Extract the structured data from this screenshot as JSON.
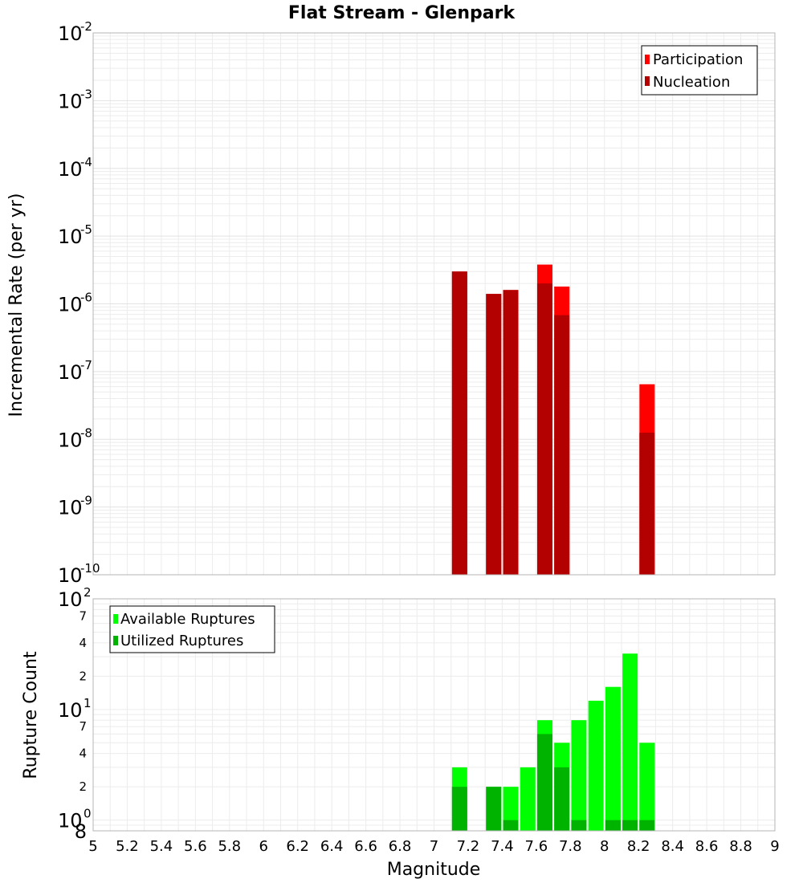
{
  "chart_data": [
    {
      "type": "bar",
      "title": "Flat Stream - Glenpark",
      "xlabel": "Magnitude",
      "ylabel": "Incremental Rate (per yr)",
      "yscale": "log",
      "xlim": [
        5,
        9
      ],
      "ylim": [
        1e-10,
        0.01
      ],
      "grid": true,
      "legend_position": "top-right",
      "x_ticks": [
        "5",
        "5.2",
        "5.4",
        "5.6",
        "5.8",
        "6",
        "6.2",
        "6.4",
        "6.6",
        "6.8",
        "7",
        "7.2",
        "7.4",
        "7.6",
        "7.8",
        "8",
        "8.2",
        "8.4",
        "8.6",
        "8.8",
        "9"
      ],
      "y_ticks": [
        {
          "base": "10",
          "exp": "-2",
          "value": 0.01
        },
        {
          "base": "10",
          "exp": "-3",
          "value": 0.001
        },
        {
          "base": "10",
          "exp": "-4",
          "value": 0.0001
        },
        {
          "base": "10",
          "exp": "-5",
          "value": 1e-05
        },
        {
          "base": "10",
          "exp": "-6",
          "value": 1e-06
        },
        {
          "base": "10",
          "exp": "-7",
          "value": 1e-07
        },
        {
          "base": "10",
          "exp": "-8",
          "value": 1e-08
        },
        {
          "base": "10",
          "exp": "-9",
          "value": 1e-09
        },
        {
          "base": "10",
          "exp": "-10",
          "value": 1e-10
        }
      ],
      "series": [
        {
          "name": "Participation",
          "color": "#ff0000",
          "x": [
            7.15,
            7.35,
            7.45,
            7.65,
            7.75,
            8.25
          ],
          "values": [
            3e-06,
            1.4e-06,
            1.6e-06,
            3.8e-06,
            1.8e-06,
            6.5e-08
          ]
        },
        {
          "name": "Nucleation",
          "color": "#b30000",
          "x": [
            7.15,
            7.35,
            7.45,
            7.65,
            7.75,
            8.25
          ],
          "values": [
            3e-06,
            1.4e-06,
            1.6e-06,
            2e-06,
            6.8e-07,
            1.25e-08
          ]
        }
      ]
    },
    {
      "type": "bar",
      "title": "",
      "xlabel": "Magnitude",
      "ylabel": "Rupture Count",
      "yscale": "log",
      "xlim": [
        5,
        9
      ],
      "ylim": [
        0.8,
        100
      ],
      "grid": true,
      "legend_position": "top-left",
      "y_ticks": [
        {
          "base": "10",
          "exp": "2",
          "value": 100
        },
        {
          "base": "10",
          "exp": "1",
          "value": 10
        },
        {
          "base": "10",
          "exp": "0",
          "value": 1
        }
      ],
      "y_minor_labels": [
        {
          "label": "7",
          "value": 70
        },
        {
          "label": "4",
          "value": 40
        },
        {
          "label": "2",
          "value": 20
        },
        {
          "label": "7",
          "value": 7
        },
        {
          "label": "4",
          "value": 4
        },
        {
          "label": "2",
          "value": 2
        },
        {
          "label": "8",
          "value": 0.8
        }
      ],
      "series": [
        {
          "name": "Available Ruptures",
          "color": "#00ff00",
          "x": [
            7.15,
            7.35,
            7.45,
            7.55,
            7.65,
            7.75,
            7.85,
            7.95,
            8.05,
            8.15,
            8.25
          ],
          "values": [
            3,
            2,
            2,
            3,
            8,
            5,
            8,
            12,
            16,
            32,
            5
          ]
        },
        {
          "name": "Utilized Ruptures",
          "color": "#00b300",
          "x": [
            7.15,
            7.35,
            7.45,
            7.55,
            7.65,
            7.75,
            7.85,
            7.95,
            8.05,
            8.15,
            8.25
          ],
          "values": [
            2,
            2,
            1,
            0,
            6,
            3,
            1,
            0,
            1,
            1,
            1
          ]
        }
      ]
    }
  ]
}
